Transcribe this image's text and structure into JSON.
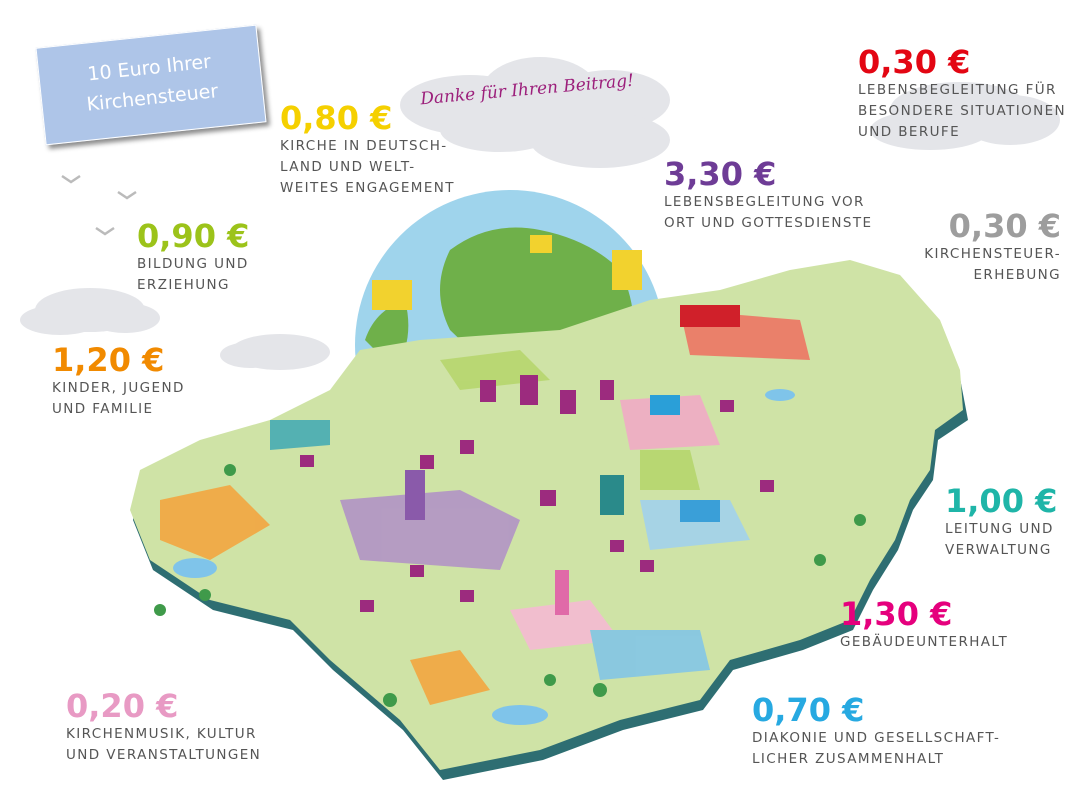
{
  "title": "10 Euro Ihrer\nKirchensteuer",
  "thanks": "Danke für Ihren Beitrag!",
  "items": [
    {
      "amount": "0,80 €",
      "text": "KIRCHE IN DEUTSCH-\nLAND UND WELT-\nWEITES ENGAGEMENT",
      "color": "#f5d000"
    },
    {
      "amount": "0,30 €",
      "text": "LEBENSBEGLEITUNG FÜR\nBESONDERE SITUATIONEN\nUND BERUFE",
      "color": "#e30613"
    },
    {
      "amount": "3,30 €",
      "text": "LEBENSBEGLEITUNG VOR\nORT UND GOTTESDIENSTE",
      "color": "#6e3c96"
    },
    {
      "amount": "0,30 €",
      "text": "KIRCHENSTEUER-\nERHEBUNG",
      "color": "#9d9d9d"
    },
    {
      "amount": "0,90 €",
      "text": "BILDUNG UND\nERZIEHUNG",
      "color": "#9cc31a"
    },
    {
      "amount": "1,20 €",
      "text": "KINDER, JUGEND\nUND FAMILIE",
      "color": "#f18a00"
    },
    {
      "amount": "1,00 €",
      "text": "LEITUNG UND\nVERWALTUNG",
      "color": "#1fb5a8"
    },
    {
      "amount": "1,30 €",
      "text": "GEBÄUDEUNTERHALT",
      "color": "#e5007d"
    },
    {
      "amount": "0,20 €",
      "text": "KIRCHENMUSIK, KULTUR\nUND VERANSTALTUNGEN",
      "color": "#e89ac4"
    },
    {
      "amount": "0,70 €",
      "text": "DIAKONIE UND GESELLSCHAFT-\nLICHER ZUSAMMENHALT",
      "color": "#27a9e1"
    }
  ]
}
